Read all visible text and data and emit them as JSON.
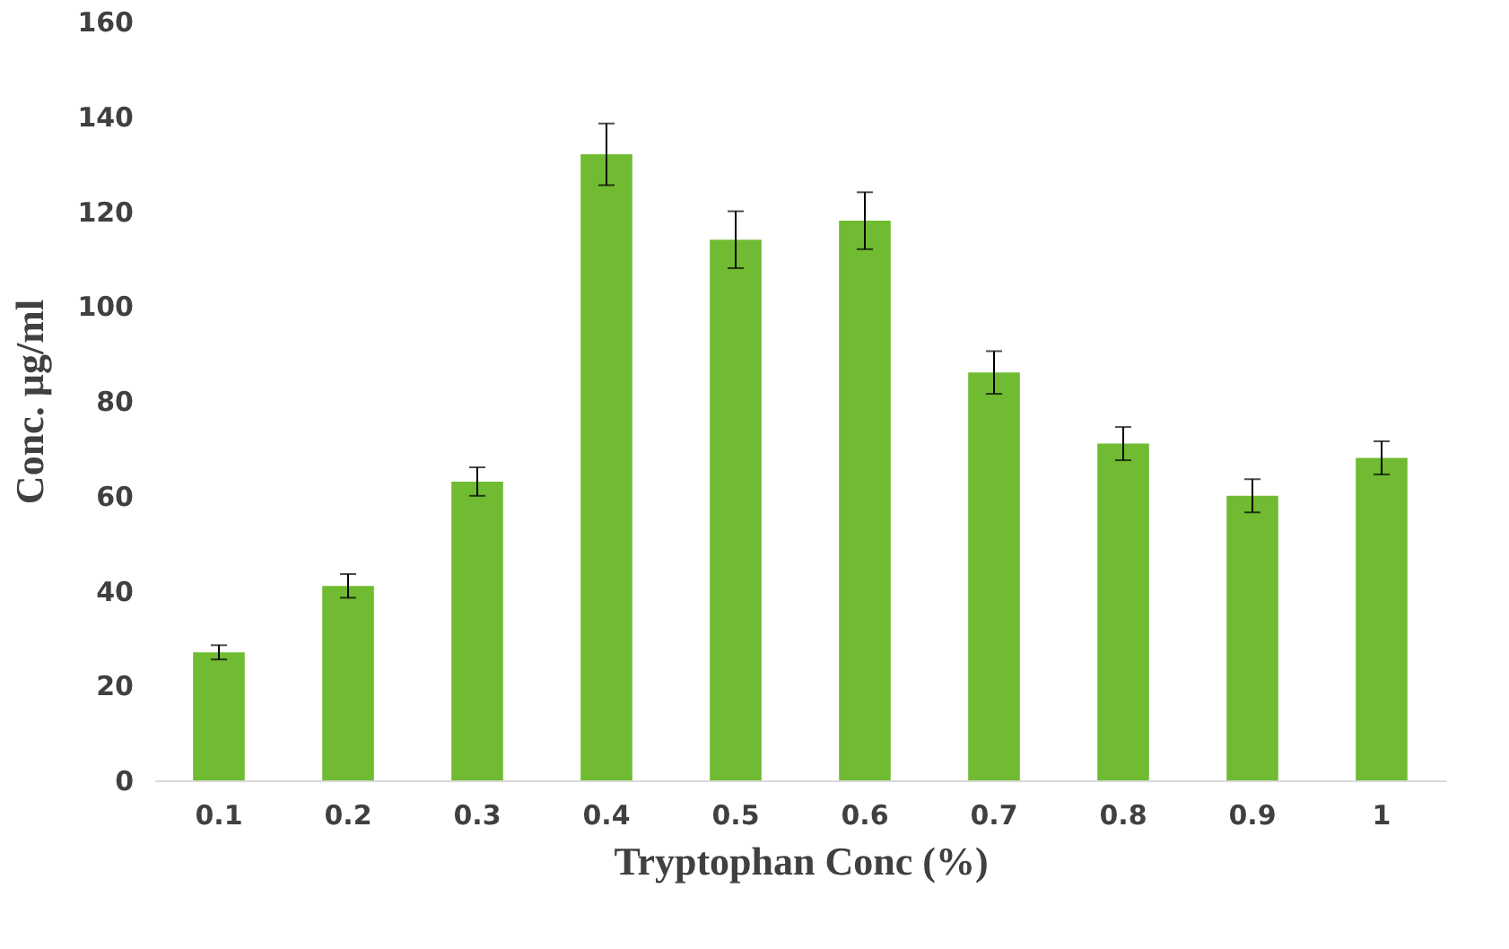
{
  "chart_data": {
    "type": "bar",
    "xlabel": "Tryptophan Conc (%)",
    "ylabel": "Conc. µg/ml",
    "categories": [
      "0.1",
      "0.2",
      "0.3",
      "0.4",
      "0.5",
      "0.6",
      "0.7",
      "0.8",
      "0.9",
      "1"
    ],
    "values": [
      27,
      41,
      63,
      132,
      114,
      118,
      86,
      71,
      60,
      68
    ],
    "errors": [
      1.5,
      2.5,
      3,
      6.5,
      6,
      6,
      4.5,
      3.5,
      3.5,
      3.5
    ],
    "color": "#70bb32",
    "ylim": [
      0,
      160
    ],
    "yticks": [
      0,
      20,
      40,
      60,
      80,
      100,
      120,
      140,
      160
    ],
    "grid": false
  }
}
